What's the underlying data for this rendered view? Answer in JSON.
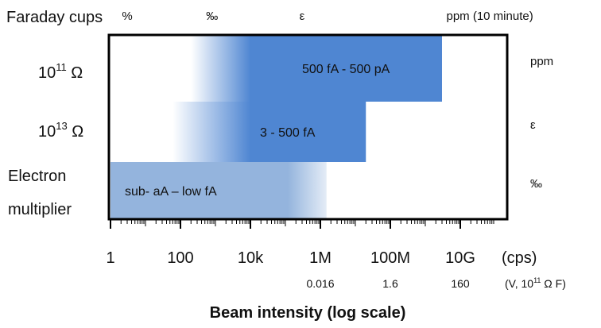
{
  "chart_data": {
    "type": "bar",
    "orientation": "horizontal",
    "title": "",
    "xlabel": "Beam intensity (log scale)",
    "x_scale": "log",
    "xlim_cps": [
      1,
      100000000000000.0
    ],
    "x_ticks": [
      {
        "value": 1,
        "label": "1"
      },
      {
        "value": 100,
        "label": "100"
      },
      {
        "value": 10000,
        "label": "10k"
      },
      {
        "value": 1000000,
        "label": "1M"
      },
      {
        "value": 100000000,
        "label": "100M"
      },
      {
        "value": 10000000000,
        "label": "10G"
      }
    ],
    "x_unit_label": "(cps)",
    "secondary_axis": {
      "unit_label": "(V, 10",
      "unit_sup": "11",
      "unit_tail": " Ω F)",
      "ticks": [
        {
          "value": 1000000,
          "label": "0.016"
        },
        {
          "value": 100000000,
          "label": "1.6"
        },
        {
          "value": 10000000000,
          "label": "160"
        }
      ]
    },
    "top_axis": {
      "label": "Faraday cups",
      "marks": [
        {
          "value": 3,
          "label": "%"
        },
        {
          "value": 800,
          "label": "‰"
        },
        {
          "value": 300000,
          "label": "ε"
        },
        {
          "value": 4000000000,
          "label": "ppm (10 minute)"
        }
      ]
    },
    "detectors": [
      {
        "name_main": "10",
        "name_sup": "11",
        "name_tail": " Ω",
        "name_line2": "",
        "range_label": "500 fA - 500 pA",
        "x_start": 200,
        "x_solid": 10000,
        "x_end": 3000000000,
        "precision": "ppm",
        "color": "#4f86d2"
      },
      {
        "name_main": "10",
        "name_sup": "13",
        "name_tail": " Ω",
        "name_line2": "",
        "range_label": "3 - 500 fA",
        "x_start": 60,
        "x_solid": 10000,
        "x_end": 20000000,
        "precision": "ε",
        "color": "#4f86d2"
      },
      {
        "name_main": "Electron",
        "name_sup": "",
        "name_tail": "",
        "name_line2": "multiplier",
        "range_label": "sub- aA –  low fA",
        "x_start": 1,
        "x_solid": 100000,
        "x_end": 1500000,
        "precision": "‰",
        "color": "#94b4dd"
      }
    ]
  }
}
